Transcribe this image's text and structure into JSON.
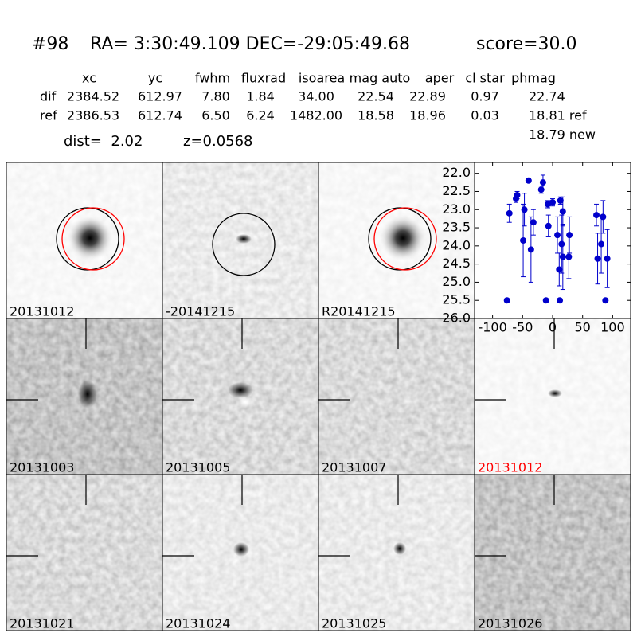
{
  "header": {
    "id": "#98",
    "coords": "RA= 3:30:49.109 DEC=-29:05:49.68",
    "score": "score=30.0"
  },
  "table": {
    "columns": [
      "xc",
      "yc",
      "fwhm",
      "fluxrad",
      "isoarea",
      "mag auto",
      "aper",
      "cl star",
      "phmag"
    ],
    "rows": [
      [
        "dif",
        "2384.52",
        "612.97",
        "7.80",
        "1.84",
        "34.00",
        "22.54",
        "22.89",
        "0.97",
        "22.74"
      ],
      [
        "ref",
        "2386.53",
        "612.74",
        "6.50",
        "6.24",
        "1482.00",
        "18.58",
        "18.96",
        "0.03",
        "18.81 ref"
      ]
    ],
    "extra": "18.79 new"
  },
  "dist": "dist=  2.02",
  "z": "z=0.0568",
  "panels": {
    "labels": [
      "20131012",
      "-20141215",
      "R20141215",
      "20131003",
      "20131005",
      "20131007",
      "20131012",
      "20131021",
      "20131024",
      "20131025",
      "20131026"
    ],
    "label_colors": [
      "#000000",
      "#000000",
      "#000000",
      "#000000",
      "#000000",
      "#000000",
      "#ff0000",
      "#000000",
      "#000000",
      "#000000",
      "#000000"
    ]
  },
  "chart_data": {
    "type": "scatter",
    "color": "#0000cc",
    "x": [
      -76,
      -72,
      -61,
      -59,
      -49,
      -47,
      -40,
      -36,
      -32,
      -19,
      -16,
      -11,
      -8,
      -7,
      0,
      8,
      11,
      12,
      13,
      15,
      17,
      17,
      27,
      28,
      73,
      75,
      81,
      84,
      88,
      91
    ],
    "values": [
      25.5,
      23.1,
      22.7,
      22.6,
      23.85,
      23.0,
      22.2,
      24.1,
      23.35,
      22.45,
      22.25,
      25.5,
      22.85,
      23.45,
      22.8,
      23.7,
      24.65,
      25.5,
      22.75,
      23.95,
      23.05,
      24.3,
      24.3,
      23.7,
      23.15,
      24.35,
      23.95,
      23.2,
      25.5,
      24.35
    ],
    "errors": [
      0.05,
      0.25,
      0.1,
      0.1,
      1.0,
      0.45,
      0.05,
      0.9,
      0.35,
      0.1,
      0.2,
      0.05,
      0.1,
      0.3,
      0.1,
      0.5,
      0.45,
      0.05,
      0.1,
      0.8,
      0.4,
      0.9,
      0.6,
      0.5,
      0.3,
      0.7,
      0.8,
      0.45,
      0.05,
      0.8
    ],
    "xlim": [
      -130,
      130
    ],
    "ylim": [
      26.0,
      21.7
    ],
    "xticks": [
      -100,
      -50,
      0,
      50,
      100
    ],
    "yticks": [
      {
        "value": 22,
        "label": "22.0"
      },
      {
        "value": 22.5,
        "label": "22.5"
      },
      {
        "value": 23,
        "label": "23.0"
      },
      {
        "value": 23.5,
        "label": "23.5"
      },
      {
        "value": 24,
        "label": "24.0"
      },
      {
        "value": 24.5,
        "label": "24.5"
      },
      {
        "value": 25,
        "label": "25.0"
      },
      {
        "value": 25.5,
        "label": "25.5"
      },
      {
        "value": 26,
        "label": "26.0"
      }
    ]
  }
}
